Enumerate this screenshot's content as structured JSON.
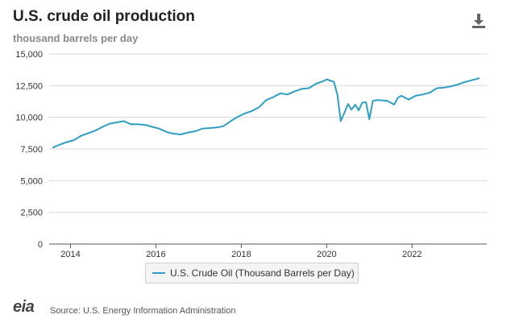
{
  "header": {
    "title": "U.S. crude oil production",
    "subtitle": "thousand barrels per day"
  },
  "footer": {
    "logo": "eia",
    "source": "Source: U.S. Energy Information Administration"
  },
  "colors": {
    "series": "#2e9ec4",
    "grid": "#d8d8d8",
    "axis": "#555555"
  },
  "icons": {
    "download": "download-icon"
  },
  "chart_data": {
    "type": "line",
    "title": "U.S. crude oil production",
    "ylabel": "thousand barrels per day",
    "xlabel": "",
    "ylim": [
      0,
      15000
    ],
    "xlim": [
      2013.5,
      2023.75
    ],
    "y_ticks": [
      0,
      2500,
      5000,
      7500,
      10000,
      12500,
      15000
    ],
    "y_tick_labels": [
      "0",
      "2,500",
      "5,000",
      "7,500",
      "10,000",
      "12,500",
      "15,000"
    ],
    "x_ticks": [
      2014,
      2016,
      2018,
      2020,
      2022
    ],
    "x_tick_labels": [
      "2014",
      "2016",
      "2018",
      "2020",
      "2022"
    ],
    "grid": true,
    "legend_position": "bottom-center",
    "series": [
      {
        "name": "U.S. Crude Oil (Thousand Barrels per Day)",
        "x": [
          2013.58,
          2013.75,
          2013.92,
          2014.08,
          2014.25,
          2014.42,
          2014.58,
          2014.75,
          2014.92,
          2015.08,
          2015.25,
          2015.42,
          2015.58,
          2015.75,
          2015.92,
          2016.08,
          2016.25,
          2016.42,
          2016.58,
          2016.75,
          2016.92,
          2017.08,
          2017.25,
          2017.42,
          2017.58,
          2017.75,
          2017.92,
          2018.08,
          2018.25,
          2018.42,
          2018.58,
          2018.75,
          2018.92,
          2019.08,
          2019.25,
          2019.42,
          2019.58,
          2019.75,
          2019.92,
          2020.0,
          2020.08,
          2020.17,
          2020.25,
          2020.33,
          2020.42,
          2020.5,
          2020.58,
          2020.67,
          2020.75,
          2020.83,
          2020.92,
          2021.0,
          2021.08,
          2021.17,
          2021.25,
          2021.42,
          2021.58,
          2021.67,
          2021.75,
          2021.92,
          2022.08,
          2022.25,
          2022.42,
          2022.58,
          2022.75,
          2022.92,
          2023.08,
          2023.25,
          2023.42,
          2023.58
        ],
        "values": [
          7600,
          7850,
          8050,
          8200,
          8550,
          8750,
          8950,
          9250,
          9500,
          9600,
          9700,
          9450,
          9450,
          9400,
          9250,
          9100,
          8850,
          8700,
          8650,
          8800,
          8900,
          9100,
          9150,
          9200,
          9300,
          9700,
          10050,
          10300,
          10500,
          10800,
          11350,
          11600,
          11900,
          11800,
          12050,
          12250,
          12300,
          12650,
          12850,
          13000,
          12900,
          12800,
          11800,
          9700,
          10400,
          11050,
          10600,
          11000,
          10550,
          11150,
          11200,
          9850,
          11300,
          11350,
          11350,
          11300,
          11000,
          11550,
          11700,
          11400,
          11700,
          11800,
          11950,
          12300,
          12350,
          12450,
          12600,
          12800,
          12950,
          13100
        ]
      }
    ]
  }
}
